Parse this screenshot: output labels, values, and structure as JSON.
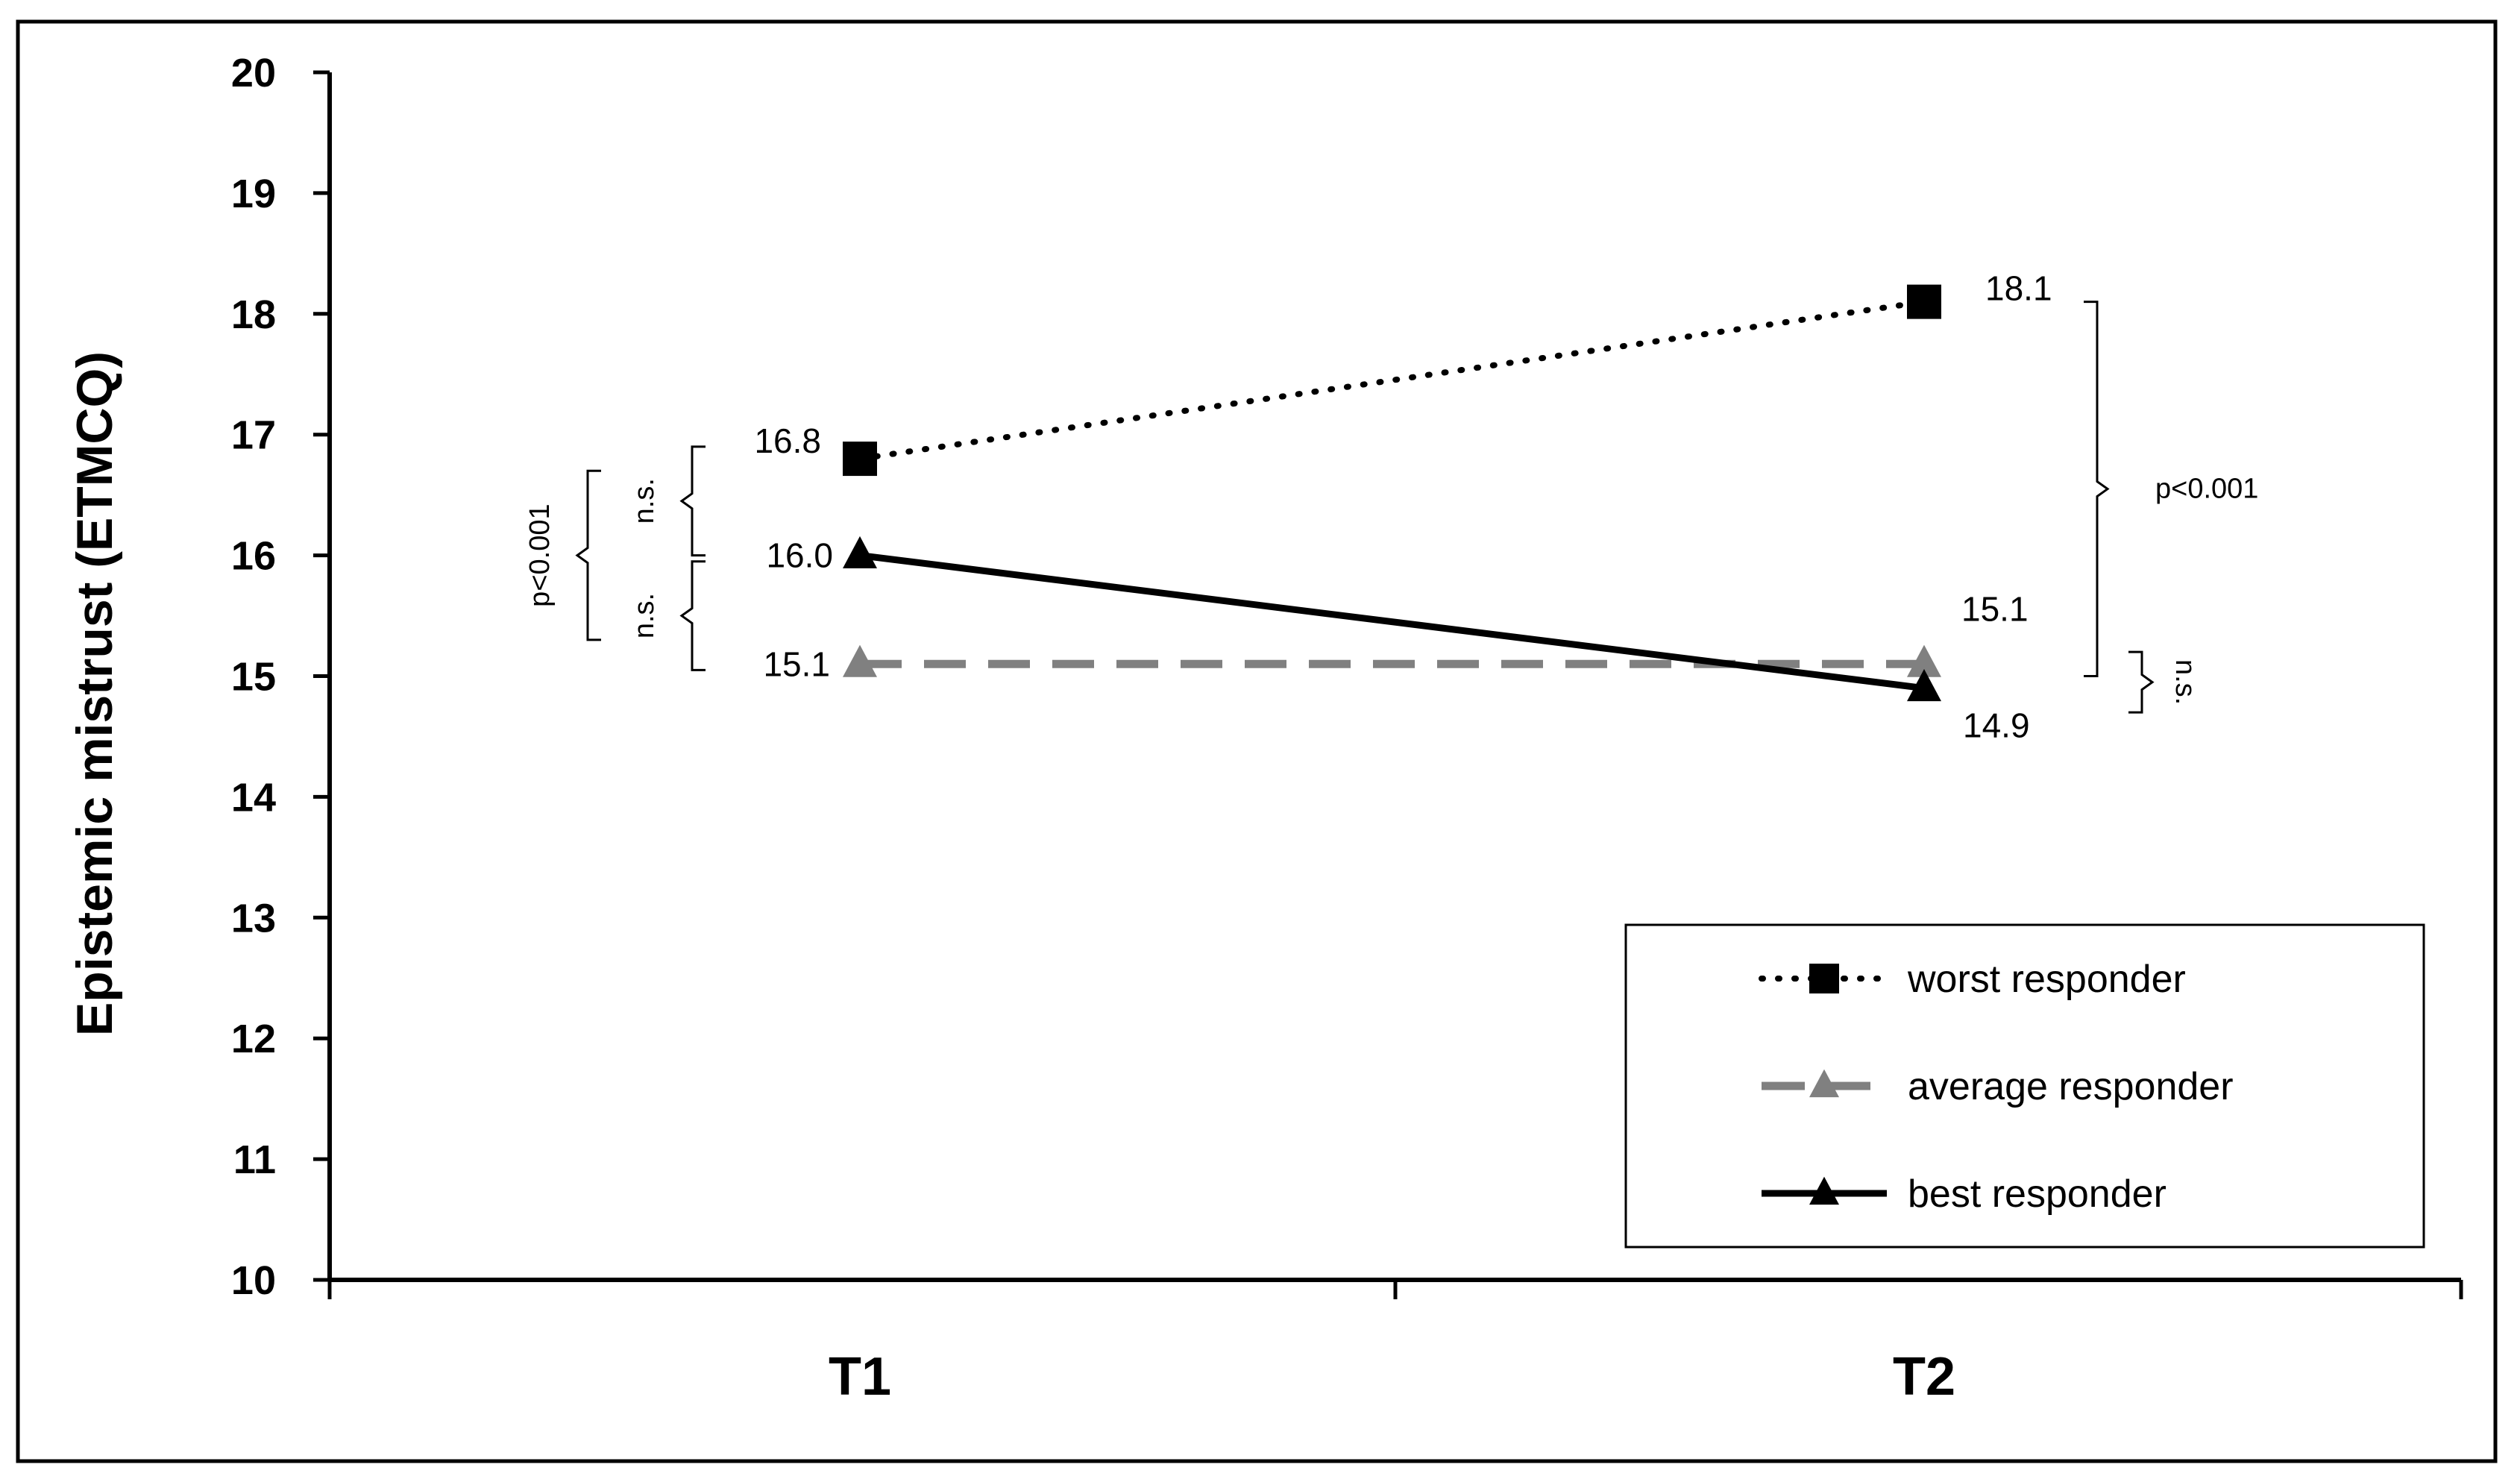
{
  "chart_data": {
    "type": "line",
    "title": "",
    "xlabel": "",
    "ylabel": "Epistemic mistrust (ETMCQ)",
    "categories": [
      "T1",
      "T2"
    ],
    "ylim": [
      10,
      20
    ],
    "yticks": [
      "10",
      "11",
      "12",
      "13",
      "14",
      "15",
      "16",
      "17",
      "18",
      "19",
      "20"
    ],
    "grid": false,
    "legend_position": "bottom-right",
    "series": [
      {
        "name": "worst responder",
        "values": [
          16.8,
          18.1
        ],
        "labels": [
          "16.8",
          "18.1"
        ],
        "line": "dotted",
        "marker": "square",
        "color": "#000000"
      },
      {
        "name": "average responder",
        "values": [
          15.1,
          15.1
        ],
        "labels": [
          "15.1",
          "15.1"
        ],
        "line": "dashed",
        "marker": "triangle",
        "color": "#808080"
      },
      {
        "name": "best responder",
        "values": [
          16.0,
          14.9
        ],
        "labels": [
          "16.0",
          "14.9"
        ],
        "line": "solid",
        "marker": "triangle",
        "color": "#000000"
      }
    ],
    "annotations": {
      "t1_worst_vs_best": "n.s.",
      "t1_best_vs_average": "n.s.",
      "t1_overall": "p<0.001",
      "t2_worst_vs_others": "p<0.001",
      "t2_average_vs_best": "n.s."
    }
  }
}
